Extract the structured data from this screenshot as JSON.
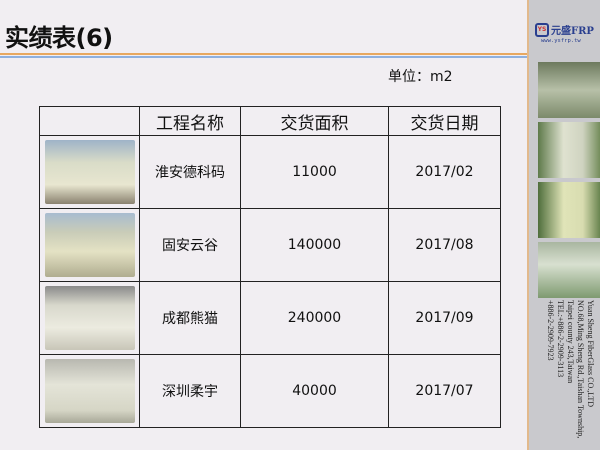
{
  "title": "实绩表(6)",
  "unit_label": "单位：m2",
  "sidebar": {
    "logo_name": "元盛FRP",
    "logo_mark": "YS",
    "logo_url": "www.ysfrp.tw",
    "address": [
      "Yuan Sheng FiberGlass CO.,LTD",
      "NO.68,Ming Sheng Rd.,Taishan Township,",
      "Taipei county 243,Taiwan",
      "TEL:+886-2-2909-3113",
      "+886-2-2909-7923"
    ]
  },
  "table": {
    "headers": [
      "",
      "工程名称",
      "交货面积",
      "交货日期"
    ],
    "rows": [
      {
        "name": "淮安德科码",
        "area": "11000",
        "date": "2017/02"
      },
      {
        "name": "固安云谷",
        "area": "140000",
        "date": "2017/08"
      },
      {
        "name": "成都熊猫",
        "area": "240000",
        "date": "2017/09"
      },
      {
        "name": "深圳柔宇",
        "area": "40000",
        "date": "2017/07"
      }
    ]
  }
}
